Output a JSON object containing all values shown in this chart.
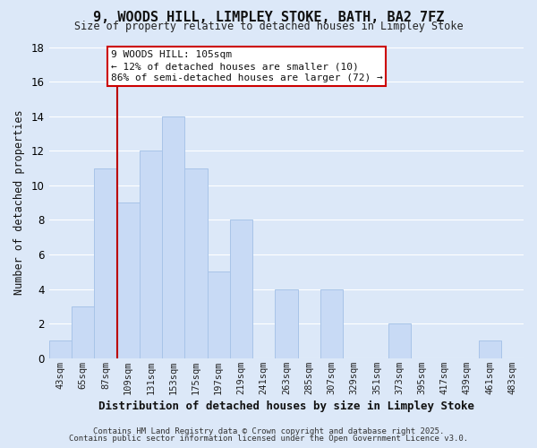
{
  "title": "9, WOODS HILL, LIMPLEY STOKE, BATH, BA2 7FZ",
  "subtitle": "Size of property relative to detached houses in Limpley Stoke",
  "xlabel": "Distribution of detached houses by size in Limpley Stoke",
  "ylabel": "Number of detached properties",
  "bin_labels": [
    "43sqm",
    "65sqm",
    "87sqm",
    "109sqm",
    "131sqm",
    "153sqm",
    "175sqm",
    "197sqm",
    "219sqm",
    "241sqm",
    "263sqm",
    "285sqm",
    "307sqm",
    "329sqm",
    "351sqm",
    "373sqm",
    "395sqm",
    "417sqm",
    "439sqm",
    "461sqm",
    "483sqm"
  ],
  "bar_values": [
    1,
    3,
    11,
    9,
    12,
    14,
    11,
    5,
    8,
    0,
    4,
    0,
    4,
    0,
    0,
    2,
    0,
    0,
    0,
    1,
    0
  ],
  "bar_color": "#c8daf5",
  "bar_edge_color": "#a8c4e8",
  "vline_color": "#bb0000",
  "ylim": [
    0,
    18
  ],
  "yticks": [
    0,
    2,
    4,
    6,
    8,
    10,
    12,
    14,
    16,
    18
  ],
  "annotation_line1": "9 WOODS HILL: 105sqm",
  "annotation_line2": "← 12% of detached houses are smaller (10)",
  "annotation_line3": "86% of semi-detached houses are larger (72) →",
  "bg_color": "#dce8f8",
  "grid_color": "#ffffff",
  "footer1": "Contains HM Land Registry data © Crown copyright and database right 2025.",
  "footer2": "Contains public sector information licensed under the Open Government Licence v3.0."
}
